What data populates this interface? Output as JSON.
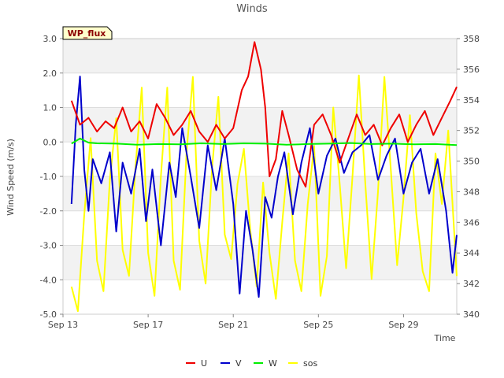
{
  "chart_data": {
    "type": "line",
    "title": "Winds",
    "badge": "WP_flux",
    "xlabel": "Time",
    "ylabel": "Wind Speed (m/s)",
    "x_domain_days": [
      0,
      18.5
    ],
    "x_ticks": [
      {
        "day": 0,
        "label": "Sep 13"
      },
      {
        "day": 4,
        "label": "Sep 17"
      },
      {
        "day": 8,
        "label": "Sep 21"
      },
      {
        "day": 12,
        "label": "Sep 25"
      },
      {
        "day": 16,
        "label": "Sep 29"
      }
    ],
    "ylim": [
      -5.0,
      3.0
    ],
    "y_ticks": [
      "-5.0",
      "-4.0",
      "-3.0",
      "-2.0",
      "-1.0",
      "0.0",
      "1.0",
      "2.0",
      "3.0"
    ],
    "y2lim": [
      340,
      358
    ],
    "y2_ticks": [
      "340",
      "342",
      "344",
      "346",
      "348",
      "350",
      "352",
      "354",
      "356",
      "358"
    ],
    "grid": "horizontal bands",
    "legend_position": "bottom-center",
    "series": [
      {
        "name": "U",
        "color": "#ee0000",
        "axis": "left",
        "x": [
          0.4,
          0.8,
          1.2,
          1.6,
          2.0,
          2.4,
          2.8,
          3.2,
          3.6,
          4.0,
          4.4,
          4.8,
          5.2,
          5.6,
          6.0,
          6.4,
          6.8,
          7.2,
          7.6,
          8.0,
          8.4,
          8.7,
          9.0,
          9.3,
          9.5,
          9.7,
          10.0,
          10.3,
          10.6,
          11.0,
          11.4,
          11.8,
          12.2,
          12.6,
          13.0,
          13.4,
          13.8,
          14.2,
          14.6,
          15.0,
          15.4,
          15.8,
          16.2,
          16.6,
          17.0,
          17.4,
          17.8,
          18.2,
          18.5
        ],
        "values": [
          1.2,
          0.5,
          0.7,
          0.3,
          0.6,
          0.4,
          1.0,
          0.3,
          0.6,
          0.1,
          1.1,
          0.7,
          0.2,
          0.5,
          0.9,
          0.3,
          0.0,
          0.5,
          0.1,
          0.4,
          1.5,
          1.9,
          2.9,
          2.1,
          1.0,
          -1.0,
          -0.5,
          0.9,
          0.2,
          -0.8,
          -1.3,
          0.5,
          0.8,
          0.2,
          -0.6,
          0.1,
          0.8,
          0.2,
          0.5,
          -0.1,
          0.4,
          0.8,
          0.0,
          0.5,
          0.9,
          0.2,
          0.7,
          1.2,
          1.6
        ]
      },
      {
        "name": "V",
        "color": "#0000cc",
        "axis": "left",
        "x": [
          0.4,
          0.6,
          0.8,
          1.0,
          1.2,
          1.4,
          1.8,
          2.2,
          2.5,
          2.8,
          3.2,
          3.6,
          3.9,
          4.2,
          4.6,
          5.0,
          5.3,
          5.6,
          6.0,
          6.4,
          6.8,
          7.2,
          7.6,
          8.0,
          8.3,
          8.6,
          8.9,
          9.2,
          9.5,
          9.8,
          10.1,
          10.4,
          10.8,
          11.2,
          11.6,
          12.0,
          12.4,
          12.8,
          13.2,
          13.6,
          14.0,
          14.4,
          14.8,
          15.2,
          15.6,
          16.0,
          16.4,
          16.8,
          17.2,
          17.6,
          18.0,
          18.3,
          18.5
        ],
        "values": [
          -1.8,
          0.5,
          1.9,
          -0.8,
          -2.0,
          -0.5,
          -1.2,
          -0.3,
          -2.6,
          -0.6,
          -1.5,
          -0.2,
          -2.3,
          -0.8,
          -3.0,
          -0.6,
          -1.6,
          0.4,
          -1.0,
          -2.5,
          -0.1,
          -1.4,
          0.1,
          -1.8,
          -4.4,
          -2.0,
          -3.1,
          -4.5,
          -1.6,
          -2.2,
          -1.0,
          -0.3,
          -2.1,
          -0.6,
          0.4,
          -1.5,
          -0.4,
          0.1,
          -0.9,
          -0.3,
          -0.1,
          0.2,
          -1.1,
          -0.4,
          0.1,
          -1.5,
          -0.6,
          -0.2,
          -1.5,
          -0.5,
          -2.0,
          -3.8,
          -2.7
        ]
      },
      {
        "name": "W",
        "color": "#00ee00",
        "axis": "left",
        "x": [
          0.4,
          0.8,
          1.2,
          1.6,
          2.5,
          3.5,
          4.5,
          5.5,
          6.5,
          7.5,
          8.5,
          9.5,
          10.5,
          11.5,
          12.5,
          13.5,
          14.5,
          15.5,
          16.5,
          17.5,
          18.5
        ],
        "values": [
          -0.05,
          0.1,
          -0.02,
          -0.04,
          -0.05,
          -0.08,
          -0.06,
          -0.07,
          -0.04,
          -0.06,
          -0.04,
          -0.05,
          -0.08,
          -0.06,
          -0.05,
          -0.03,
          -0.06,
          -0.05,
          -0.07,
          -0.06,
          -0.09
        ]
      },
      {
        "name": "sos",
        "color": "#ffff00",
        "axis": "right",
        "x": [
          0.4,
          0.7,
          1.0,
          1.3,
          1.6,
          1.9,
          2.2,
          2.5,
          2.8,
          3.1,
          3.4,
          3.7,
          4.0,
          4.3,
          4.6,
          4.9,
          5.2,
          5.5,
          5.8,
          6.1,
          6.4,
          6.7,
          7.0,
          7.3,
          7.6,
          7.9,
          8.2,
          8.5,
          8.8,
          9.1,
          9.4,
          9.7,
          10.0,
          10.3,
          10.6,
          10.9,
          11.2,
          11.5,
          11.8,
          12.1,
          12.4,
          12.7,
          13.0,
          13.3,
          13.6,
          13.9,
          14.2,
          14.5,
          14.8,
          15.1,
          15.4,
          15.7,
          16.0,
          16.3,
          16.6,
          16.9,
          17.2,
          17.5,
          17.8,
          18.1,
          18.5
        ],
        "values": [
          341.8,
          340.2,
          346.5,
          351.5,
          343.5,
          341.5,
          348.8,
          352.8,
          344.2,
          342.5,
          349.5,
          354.8,
          344.0,
          341.2,
          349.0,
          354.8,
          343.5,
          341.6,
          350.5,
          355.5,
          344.8,
          342.0,
          349.5,
          354.2,
          345.2,
          343.6,
          348.5,
          350.8,
          345.5,
          341.8,
          348.6,
          344.0,
          341.0,
          346.0,
          350.5,
          343.5,
          341.5,
          347.2,
          351.0,
          341.2,
          343.8,
          353.5,
          348.5,
          343.0,
          349.0,
          355.6,
          348.6,
          342.3,
          348.0,
          355.5,
          349.5,
          343.2,
          347.6,
          353.0,
          346.6,
          342.8,
          341.5,
          350.5,
          347.2,
          352.0,
          342.5
        ]
      }
    ]
  }
}
